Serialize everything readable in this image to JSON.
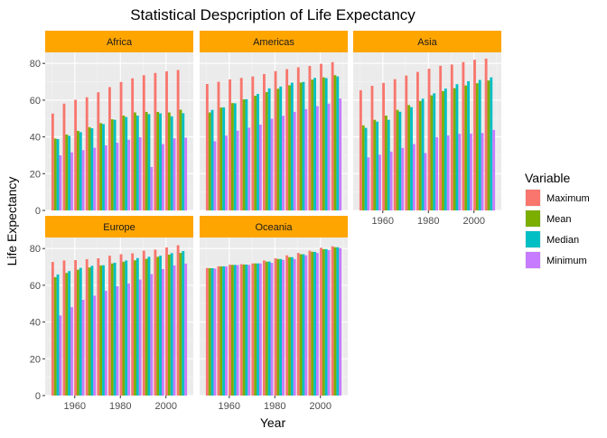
{
  "chart_data": {
    "type": "bar",
    "title": "Statistical Despcription of Life Expectancy",
    "xlabel": "Year",
    "ylabel": "Life Expectancy",
    "x": [
      1952,
      1957,
      1962,
      1967,
      1972,
      1977,
      1982,
      1987,
      1992,
      1997,
      2002,
      2007
    ],
    "x_ticks": [
      "1960",
      "1980",
      "2000"
    ],
    "y_ticks": [
      "0",
      "20",
      "40",
      "60",
      "80"
    ],
    "ylim": [
      0,
      86
    ],
    "xlim": [
      1947,
      2012
    ],
    "grid": true,
    "legend": {
      "title": "Variable",
      "position": "right",
      "entries": [
        {
          "label": "Maximum",
          "color": "#F8766D"
        },
        {
          "label": "Mean",
          "color": "#7CAE00"
        },
        {
          "label": "Median",
          "color": "#00BFC4"
        },
        {
          "label": "Minimum",
          "color": "#C77CFF"
        }
      ]
    },
    "panels": [
      {
        "name": "Africa",
        "series": [
          {
            "name": "Maximum",
            "values": [
              52.7,
              58.1,
              60.2,
              61.6,
              64.3,
              67.1,
              69.9,
              71.9,
              73.6,
              74.8,
              75.7,
              76.4
            ]
          },
          {
            "name": "Mean",
            "values": [
              39.1,
              41.3,
              43.3,
              45.3,
              47.5,
              49.6,
              51.6,
              53.3,
              53.6,
              53.6,
              53.3,
              54.8
            ]
          },
          {
            "name": "Median",
            "values": [
              38.8,
              40.6,
              42.6,
              44.7,
              47.0,
              49.3,
              50.8,
              51.6,
              52.4,
              52.8,
              51.2,
              52.9
            ]
          },
          {
            "name": "Minimum",
            "values": [
              30.0,
              31.6,
              32.8,
              34.1,
              35.4,
              36.8,
              38.4,
              39.9,
              23.6,
              36.1,
              39.2,
              39.6
            ]
          }
        ]
      },
      {
        "name": "Americas",
        "series": [
          {
            "name": "Maximum",
            "values": [
              68.8,
              70.0,
              71.3,
              72.1,
              72.9,
              74.2,
              75.8,
              76.9,
              77.9,
              78.6,
              79.8,
              80.7
            ]
          },
          {
            "name": "Mean",
            "values": [
              53.3,
              56.0,
              58.4,
              60.4,
              62.4,
              64.4,
              66.2,
              68.1,
              69.6,
              71.2,
              72.4,
              73.6
            ]
          },
          {
            "name": "Median",
            "values": [
              54.7,
              56.1,
              58.3,
              60.5,
              63.4,
              66.4,
              67.4,
              69.5,
              69.9,
              72.1,
              72.0,
              72.9
            ]
          },
          {
            "name": "Minimum",
            "values": [
              37.6,
              40.7,
              43.4,
              45.0,
              46.7,
              49.9,
              51.5,
              53.6,
              55.1,
              56.7,
              58.1,
              60.9
            ]
          }
        ]
      },
      {
        "name": "Asia",
        "series": [
          {
            "name": "Maximum",
            "values": [
              65.4,
              67.8,
              69.4,
              71.4,
              73.4,
              75.4,
              77.1,
              78.7,
              79.4,
              80.7,
              82.0,
              82.6
            ]
          },
          {
            "name": "Mean",
            "values": [
              46.3,
              49.3,
              51.6,
              54.7,
              57.3,
              59.6,
              62.6,
              64.9,
              66.5,
              68.0,
              69.2,
              70.7
            ]
          },
          {
            "name": "Median",
            "values": [
              44.9,
              48.3,
              49.3,
              53.7,
              56.2,
              60.8,
              63.7,
              66.3,
              68.7,
              70.3,
              71.0,
              72.4
            ]
          },
          {
            "name": "Minimum",
            "values": [
              28.8,
              30.3,
              32.0,
              34.0,
              36.1,
              31.2,
              39.9,
              40.8,
              41.7,
              41.8,
              42.1,
              43.8
            ]
          }
        ]
      },
      {
        "name": "Europe",
        "series": [
          {
            "name": "Maximum",
            "values": [
              72.7,
              73.5,
              73.7,
              74.2,
              74.7,
              76.1,
              76.9,
              77.4,
              78.8,
              79.4,
              80.6,
              81.8
            ]
          },
          {
            "name": "Mean",
            "values": [
              64.4,
              66.7,
              68.5,
              69.7,
              70.8,
              71.9,
              72.8,
              73.6,
              74.4,
              75.5,
              76.7,
              77.6
            ]
          },
          {
            "name": "Median",
            "values": [
              65.9,
              67.7,
              69.5,
              70.6,
              70.9,
              72.3,
              73.5,
              74.8,
              75.5,
              76.1,
              77.5,
              78.6
            ]
          },
          {
            "name": "Minimum",
            "values": [
              43.6,
              48.1,
              52.1,
              54.3,
              57.0,
              59.5,
              61.0,
              63.1,
              66.1,
              68.8,
              70.8,
              71.8
            ]
          }
        ]
      },
      {
        "name": "Oceania",
        "series": [
          {
            "name": "Maximum",
            "values": [
              69.4,
              70.3,
              71.2,
              71.5,
              71.9,
              73.5,
              74.7,
              76.3,
              77.6,
              78.8,
              80.4,
              81.2
            ]
          },
          {
            "name": "Mean",
            "values": [
              69.3,
              70.3,
              71.1,
              71.3,
              71.9,
              72.9,
              74.3,
              75.3,
              76.9,
              78.2,
              79.7,
              80.7
            ]
          },
          {
            "name": "Median",
            "values": [
              69.3,
              70.3,
              71.1,
              71.3,
              71.9,
              72.9,
              74.3,
              75.3,
              76.9,
              78.2,
              79.7,
              80.7
            ]
          },
          {
            "name": "Minimum",
            "values": [
              69.1,
              70.3,
              71.0,
              71.1,
              71.9,
              72.2,
              73.8,
              74.3,
              76.3,
              77.6,
              79.1,
              80.2
            ]
          }
        ]
      }
    ]
  }
}
